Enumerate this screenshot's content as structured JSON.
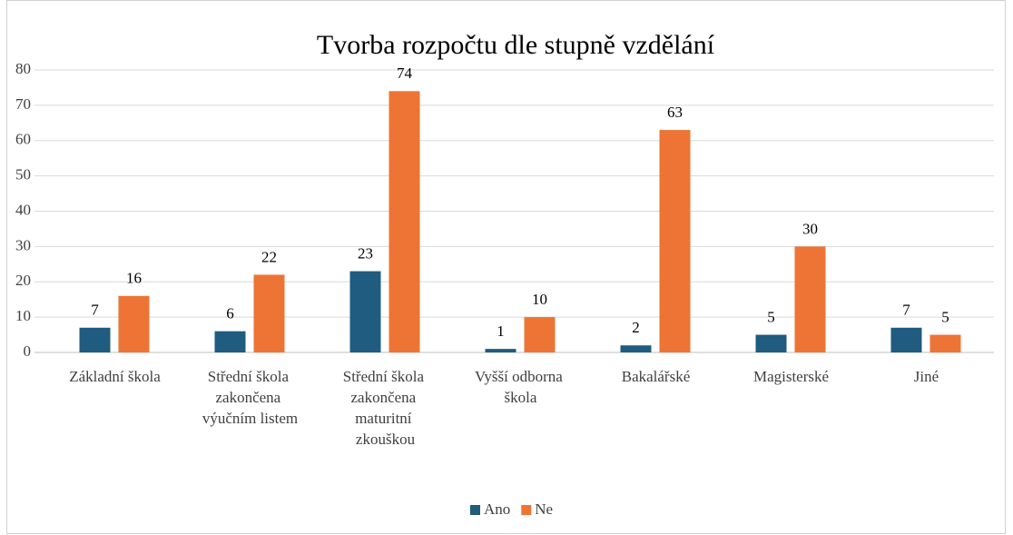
{
  "chart_data": {
    "type": "bar",
    "title": "Tvorba rozpočtu dle stupně vzdělání",
    "categories": [
      "Základní škola",
      "Střední škola zakončena výučním listem",
      "Střední škola zakončena maturitní zkouškou",
      "Vyšší odborna škola",
      "Bakalářské",
      "Magisterské",
      "Jiné"
    ],
    "series": [
      {
        "name": "Ano",
        "color": "#1f5c7f",
        "values": [
          7,
          6,
          23,
          1,
          2,
          5,
          7
        ]
      },
      {
        "name": "Ne",
        "color": "#ed7434",
        "values": [
          16,
          22,
          74,
          10,
          63,
          30,
          5
        ]
      }
    ],
    "ylim": [
      0,
      80
    ],
    "yticks": [
      0,
      10,
      20,
      30,
      40,
      50,
      60,
      70,
      80
    ],
    "grid": true,
    "legend": "bottom"
  }
}
